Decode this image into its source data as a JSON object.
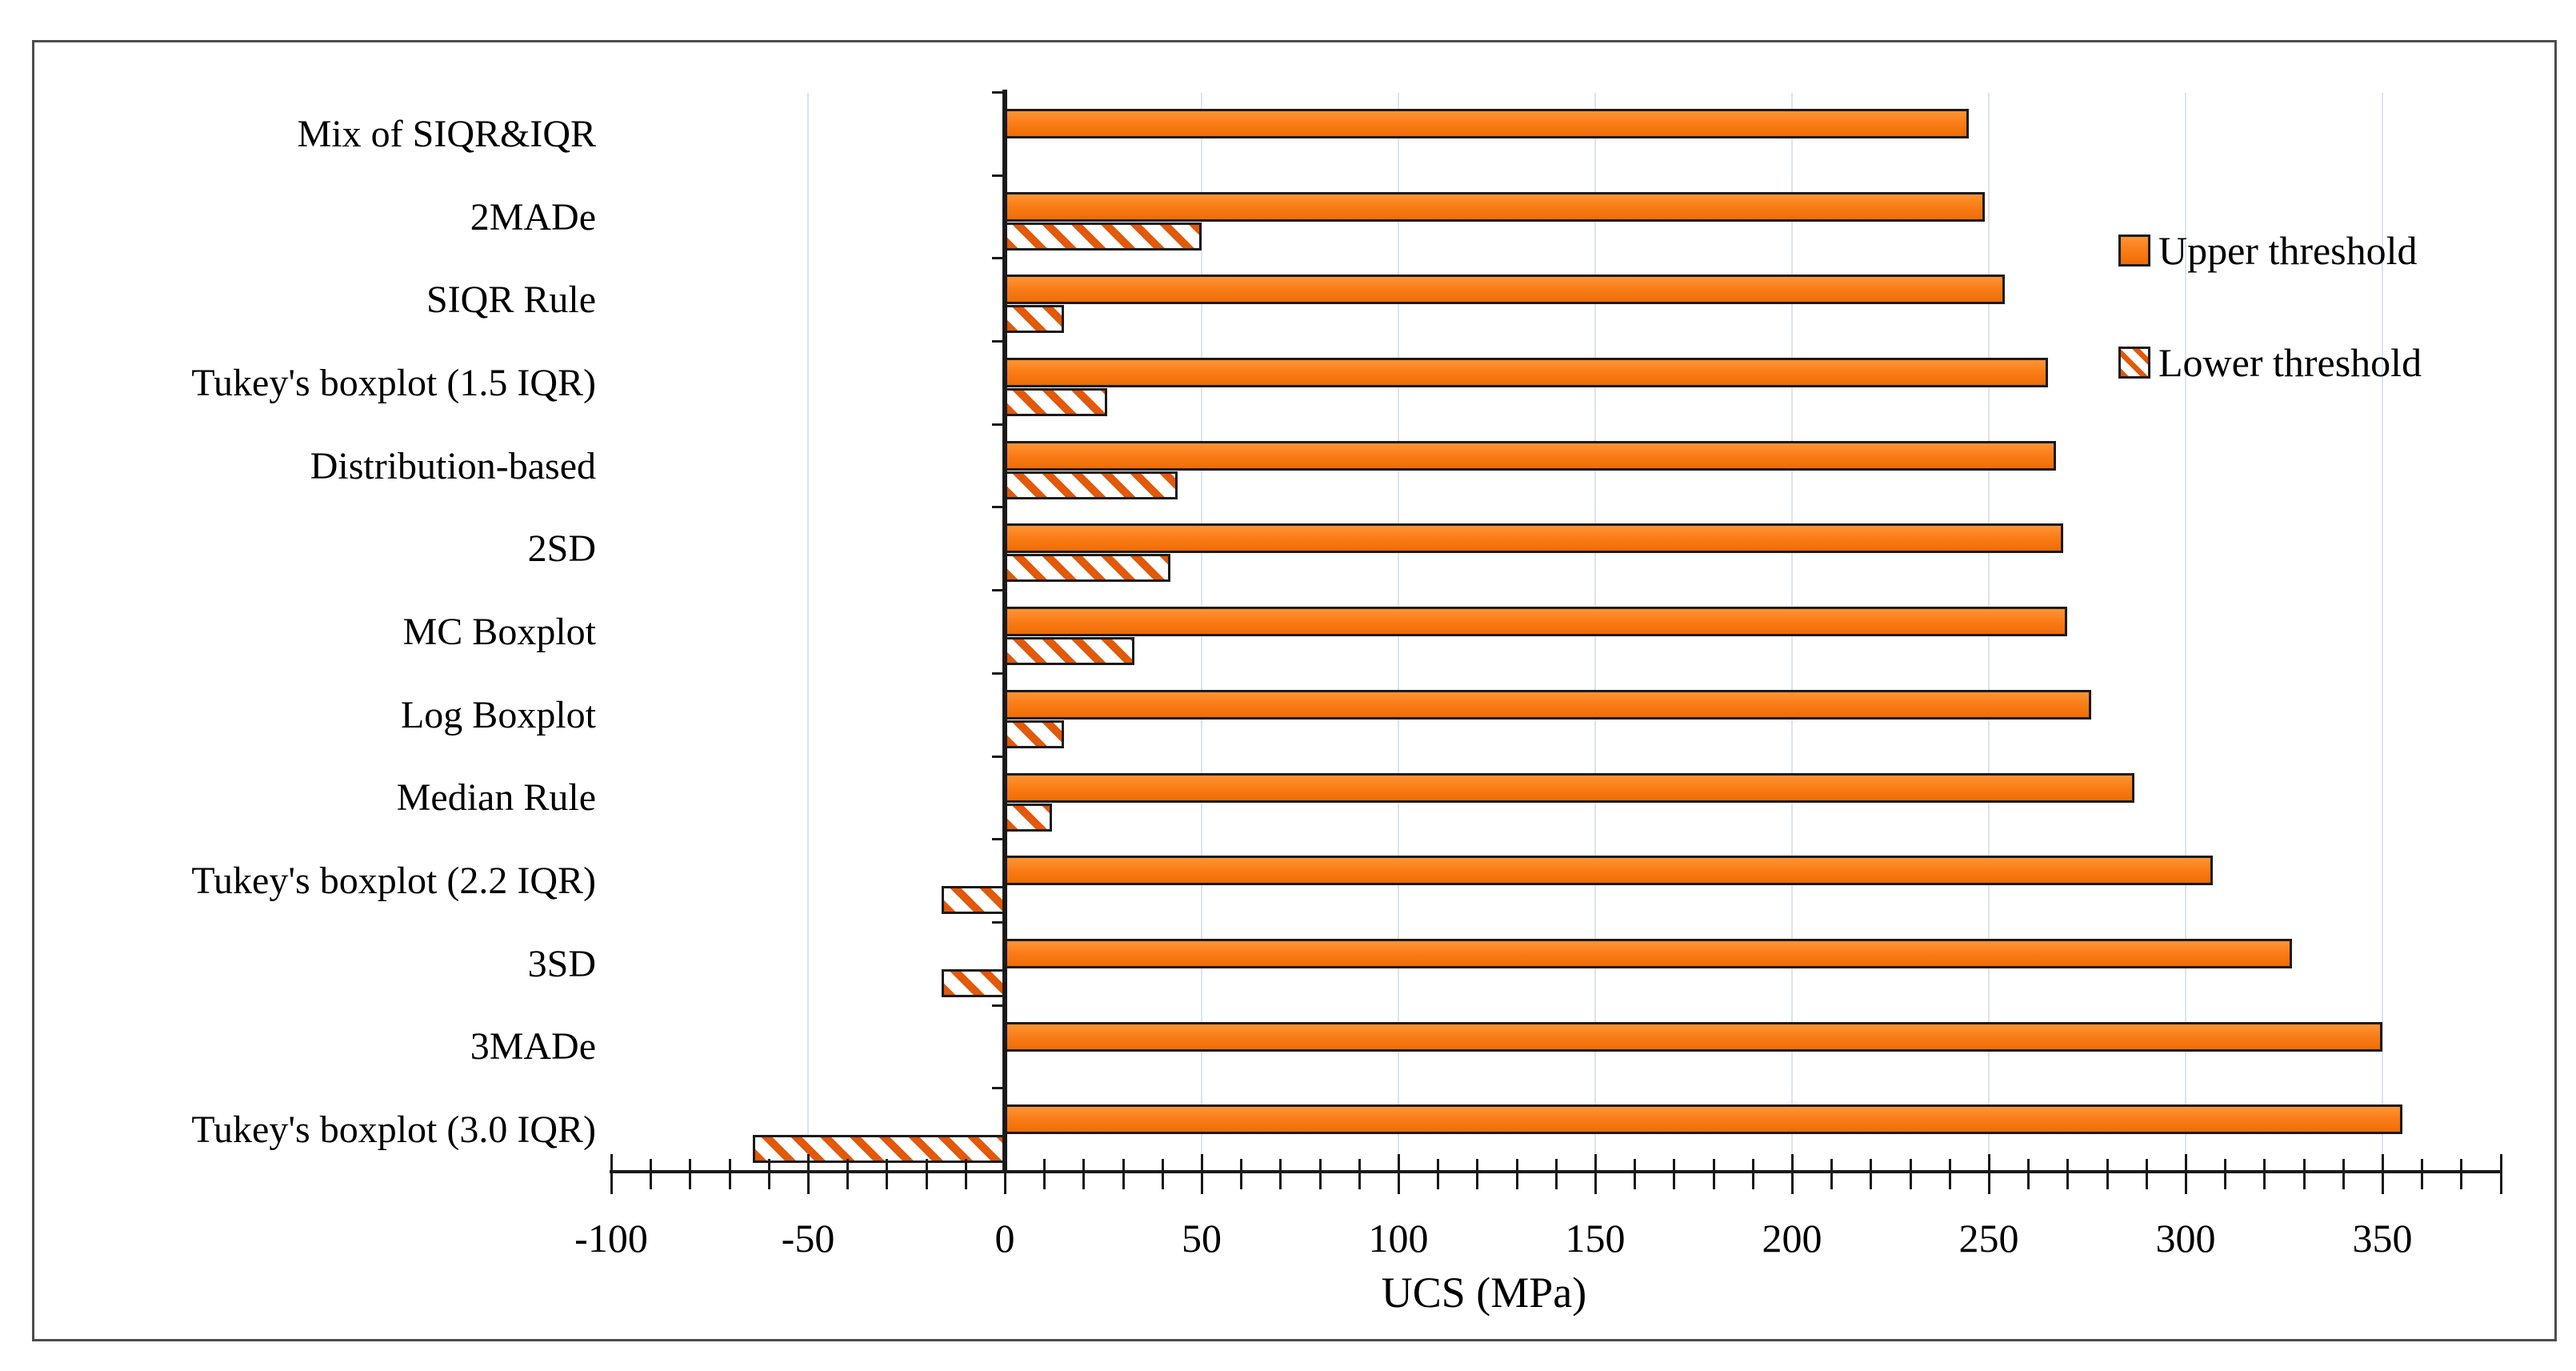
{
  "figure": {
    "background": "#ffffff",
    "border_color": "#4d4d4d"
  },
  "colors": {
    "bar_fill": "#f87d17",
    "bar_border": "#1b1b1b",
    "hatch_stripe": "#e2590a",
    "gridline": "#dde4ee",
    "axis": "#1a1a1a",
    "text": "#000000"
  },
  "chart_data": {
    "type": "bar",
    "orientation": "horizontal",
    "title": "",
    "xlabel": "UCS (MPa)",
    "ylabel": "",
    "xlim": [
      -100,
      380
    ],
    "x_major_tick_labels": [
      "-100",
      "-50",
      "0",
      "50",
      "100",
      "150",
      "200",
      "250",
      "300",
      "350"
    ],
    "x_major_tick_values": [
      -100,
      -50,
      0,
      50,
      100,
      150,
      200,
      250,
      300,
      350
    ],
    "x_minor_tick_step": 10,
    "grid": "vertical gridlines at 50-unit major ticks",
    "legend_position": "upper right",
    "categories": [
      "Mix of SIQR&IQR",
      "2MADe",
      "SIQR Rule",
      "Tukey's boxplot (1.5 IQR)",
      "Distribution-based",
      "2SD",
      "MC Boxplot",
      "Log Boxplot",
      "Median Rule",
      "Tukey's boxplot (2.2 IQR)",
      "3SD",
      "3MADe",
      "Tukey's boxplot (3.0 IQR)"
    ],
    "series": [
      {
        "name": "Upper threshold",
        "style": "solid",
        "values": [
          245,
          249,
          254,
          265,
          267,
          269,
          270,
          276,
          287,
          307,
          327,
          350,
          355
        ]
      },
      {
        "name": "Lower threshold",
        "style": "hatched",
        "values": [
          null,
          50,
          15,
          26,
          44,
          42,
          33,
          15,
          12,
          -16,
          -16,
          null,
          -64
        ]
      }
    ]
  }
}
